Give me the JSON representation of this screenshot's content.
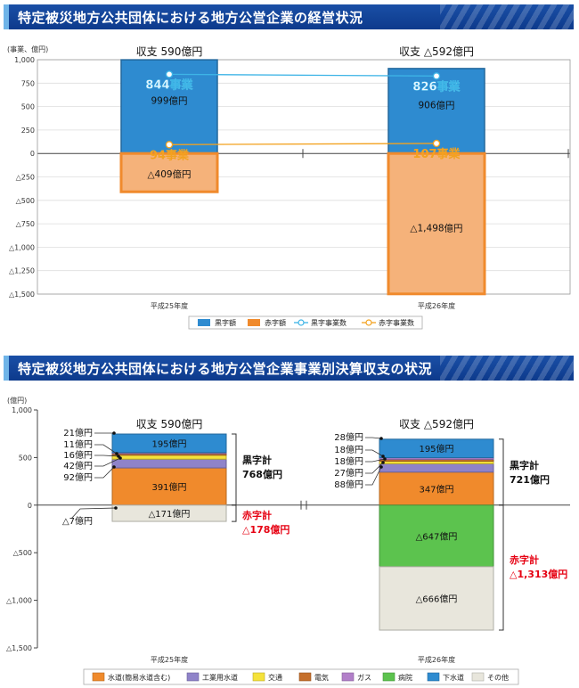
{
  "sections": {
    "top_title": "特定被災地方公共団体における地方公営企業の経営状況",
    "bottom_title": "特定被災地方公共団体における地方公営企業事業別決算収支の状況"
  },
  "chart_data": [
    {
      "type": "bar",
      "title": "特定被災地方公共団体における地方公営企業の経営状況",
      "unit_label": "(事業、億円)",
      "categories": [
        "平成25年度",
        "平成26年度"
      ],
      "ylim": [
        -1500,
        1000
      ],
      "yticks": [
        1000,
        750,
        500,
        250,
        0,
        -250,
        -500,
        -750,
        -1000,
        -1250,
        -1500
      ],
      "ytick_labels": [
        "1,000",
        "750",
        "500",
        "250",
        "0",
        "△250",
        "△500",
        "△750",
        "△1,000",
        "△1,250",
        "△1,500"
      ],
      "grid": true,
      "legend_position": "bottom",
      "series": [
        {
          "name": "黒字額",
          "kind": "bar",
          "color": "#2e8bd0",
          "values": [
            999,
            906
          ],
          "labels": [
            "999億円",
            "906億円"
          ]
        },
        {
          "name": "赤字額",
          "kind": "bar",
          "color": "#f08a2c",
          "values": [
            -409,
            -1498
          ],
          "labels": [
            "△409億円",
            "△1,498億円"
          ]
        },
        {
          "name": "黒字事業数",
          "kind": "line",
          "color": "#3db4e6",
          "values": [
            844,
            826
          ],
          "labels": [
            "844事業",
            "826事業"
          ]
        },
        {
          "name": "赤字事業数",
          "kind": "line",
          "color": "#f3a21f",
          "values": [
            94,
            107
          ],
          "labels": [
            "94事業",
            "107事業"
          ]
        }
      ],
      "annotations": [
        "収支 590億円",
        "収支 △592億円"
      ]
    },
    {
      "type": "bar",
      "title": "特定被災地方公共団体における地方公営企業事業別決算収支の状況",
      "unit_label": "(億円)",
      "categories": [
        "平成25年度",
        "平成26年度"
      ],
      "ylim": [
        -1500,
        1000
      ],
      "yticks": [
        1000,
        500,
        0,
        -500,
        -1000,
        -1500
      ],
      "ytick_labels": [
        "1,000",
        "500",
        "0",
        "△500",
        "△1,000",
        "△1,500"
      ],
      "grid": false,
      "legend_position": "bottom",
      "stack_order": [
        "水道(簡易水道含む)",
        "工業用水道",
        "交通",
        "電気",
        "ガス",
        "病院",
        "下水道",
        "その他"
      ],
      "series": [
        {
          "name": "水道(簡易水道含む)",
          "color": "#f08a2c",
          "values": [
            391,
            347
          ],
          "labels": [
            "391億円",
            "347億円"
          ]
        },
        {
          "name": "工業用水道",
          "color": "#8f83c9",
          "values": [
            92,
            88
          ],
          "labels": [
            "92億円",
            "88億円"
          ]
        },
        {
          "name": "交通",
          "color": "#f5e23a",
          "values": [
            42,
            27
          ],
          "labels": [
            "42億円",
            "27億円"
          ]
        },
        {
          "name": "電気",
          "color": "#c56f2b",
          "values": [
            16,
            18
          ],
          "labels": [
            "16億円",
            "18億円"
          ]
        },
        {
          "name": "ガス",
          "color": "#b27fc9",
          "values": [
            11,
            18
          ],
          "labels": [
            "11億円",
            "18億円"
          ]
        },
        {
          "name": "病院",
          "color": "#5cc34e",
          "values": [
            0,
            -647
          ],
          "labels": [
            "",
            "△647億円"
          ]
        },
        {
          "name": "下水道",
          "color": "#2e8bd0",
          "values": [
            195,
            195
          ],
          "labels": [
            "195億円",
            "195億円"
          ]
        },
        {
          "name": "その他",
          "color": "#e8e6dc",
          "values": [
            -171,
            -666
          ],
          "labels": [
            "△171億円",
            "△666億円"
          ]
        }
      ],
      "side_labels": {
        "y25_small": [
          "21億円",
          "11億円",
          "16億円",
          "42億円",
          "92億円"
        ],
        "y25_neg": "△7億円",
        "y26_small": [
          "28億円",
          "18億円",
          "18億円",
          "27億円",
          "88億円"
        ]
      },
      "annotations": [
        "収支 590億円",
        "収支 △592億円"
      ],
      "totals": {
        "black_label": "黒字計",
        "red_label": "赤字計",
        "y25_black": "768億円",
        "y25_red": "△178億円",
        "y26_black": "721億円",
        "y26_red": "△1,313億円"
      }
    }
  ]
}
